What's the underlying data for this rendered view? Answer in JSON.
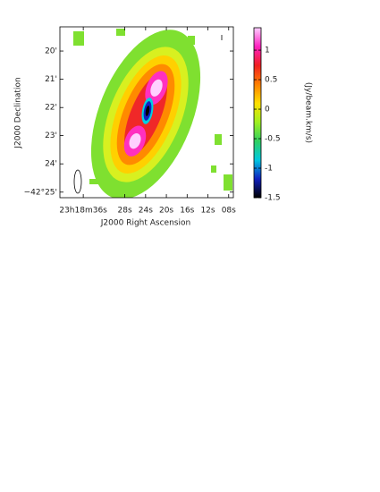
{
  "chart_data": {
    "type": "image",
    "xlabel": "J2000 Right Ascension",
    "ylabel": "J2000 Declination",
    "xlim": [
      40.5,
      7.1
    ],
    "xticks": [
      {
        "value": 36,
        "label": "23h18m36s"
      },
      {
        "value": 28,
        "label": "28s"
      },
      {
        "value": 24,
        "label": "24s"
      },
      {
        "value": 20,
        "label": "20s"
      },
      {
        "value": 16,
        "label": "16s"
      },
      {
        "value": 12,
        "label": "12s"
      },
      {
        "value": 8,
        "label": "08s"
      }
    ],
    "ylim": [
      -42.42,
      -42.319
    ],
    "yticks": [
      {
        "value": -42.3333,
        "label": "20'"
      },
      {
        "value": -42.35,
        "label": "21'"
      },
      {
        "value": -42.3667,
        "label": "22'"
      },
      {
        "value": -42.3833,
        "label": "23'"
      },
      {
        "value": -42.4,
        "label": "24'"
      },
      {
        "value": -42.4167,
        "label": "−42°25'"
      }
    ],
    "colorbar": {
      "label": "(Jy/beam.km/s)",
      "lim": [
        -1.5,
        1.38
      ],
      "ticks": [
        1,
        0.5,
        0,
        -0.5,
        -1,
        -1.5
      ],
      "colors": [
        "#000000",
        "#1020c0",
        "#00c8e0",
        "#30d060",
        "#a0f020",
        "#ffe000",
        "#ff8000",
        "#f02020",
        "#ff20c0",
        "#ffd0ff"
      ]
    }
  }
}
